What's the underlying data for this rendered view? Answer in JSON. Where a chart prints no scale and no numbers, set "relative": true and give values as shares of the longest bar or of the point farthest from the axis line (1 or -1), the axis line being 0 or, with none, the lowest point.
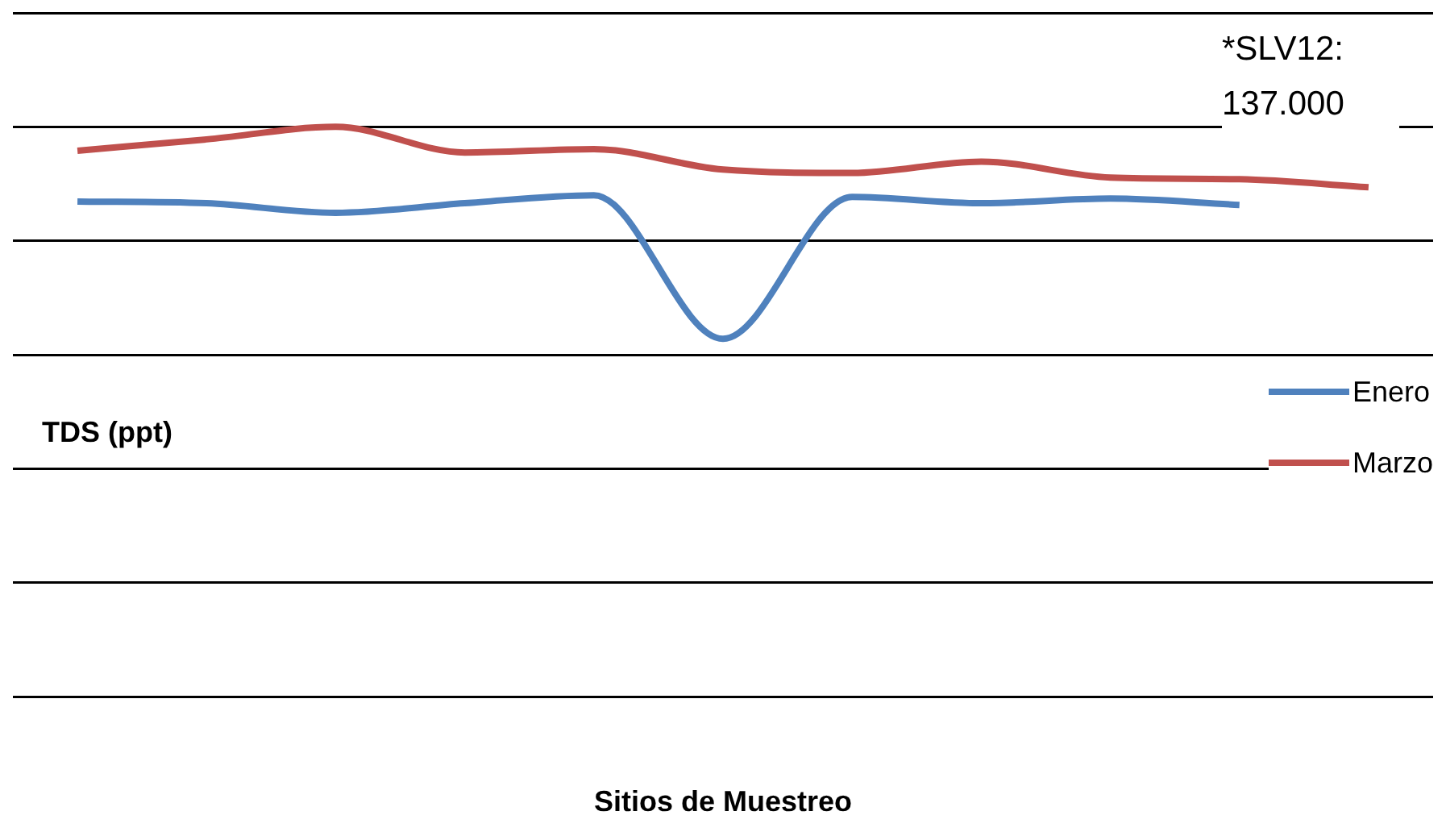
{
  "chart_data": {
    "type": "line",
    "relative": true,
    "xlabel": "Sitios de Muestreo",
    "ylabel": "TDS (ppt)",
    "annotations": [
      "*SLV12: 137.000"
    ],
    "categories": [
      null,
      null,
      null,
      null,
      null,
      null,
      null,
      null,
      null,
      null,
      null
    ],
    "series": [
      {
        "name": "Enero",
        "color": "#4f81bd",
        "values": [
          0.869,
          0.866,
          0.849,
          0.866,
          0.88,
          0.628,
          0.877,
          0.866,
          0.874,
          0.863,
          null
        ]
      },
      {
        "name": "Marzo",
        "color": "#c0504d",
        "values": [
          0.958,
          0.978,
          1,
          0.955,
          0.961,
          0.925,
          0.919,
          0.939,
          0.911,
          0.908,
          0.894
        ]
      }
    ],
    "grid": "y",
    "legend": "right",
    "marker": "none",
    "line_style": "solid"
  }
}
